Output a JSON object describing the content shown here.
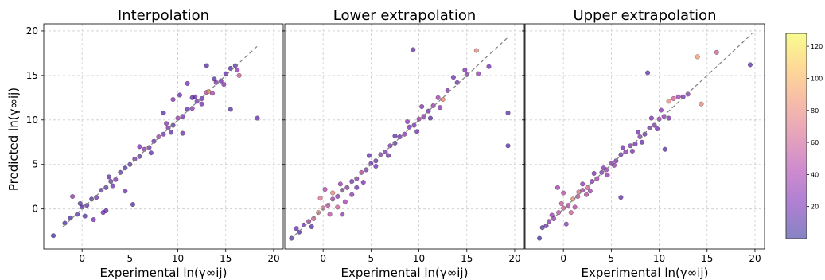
{
  "figure": {
    "ylabel": "Predicted ln(γ∞ij)",
    "colorbar": {
      "ticks": [
        20,
        40,
        60,
        80,
        100,
        120
      ],
      "range": [
        0,
        128
      ],
      "colormap": [
        "#0d0887",
        "#5c01a6",
        "#9c179e",
        "#cc4778",
        "#ed7953",
        "#fdb42f",
        "#f0f921"
      ],
      "alpha": 0.5
    },
    "colors": {
      "grid": "#cccccc",
      "diagonal": "#808080",
      "marker_edge": "#222222"
    }
  },
  "chart_data": [
    {
      "type": "scatter",
      "title": "Interpolation",
      "xlabel": "Experimental ln(γ∞ij)",
      "xlim": [
        -4,
        21
      ],
      "ylim": [
        -4.5,
        20.8
      ],
      "xticks": [
        0,
        5,
        10,
        15,
        20
      ],
      "yticks": [
        0,
        5,
        10,
        15,
        20
      ],
      "grid": true,
      "diagonal": [
        -2,
        18.5
      ],
      "points": [
        [
          -3.0,
          -3.0,
          5
        ],
        [
          -1.8,
          -1.6,
          8
        ],
        [
          -1.2,
          -1.0,
          6
        ],
        [
          -0.5,
          -0.6,
          10
        ],
        [
          0.0,
          0.2,
          12
        ],
        [
          0.5,
          0.4,
          15
        ],
        [
          1.0,
          1.1,
          9
        ],
        [
          1.5,
          1.3,
          20
        ],
        [
          2.0,
          2.1,
          14
        ],
        [
          2.5,
          2.4,
          11
        ],
        [
          3.0,
          3.1,
          18
        ],
        [
          3.5,
          3.3,
          25
        ],
        [
          4.0,
          4.1,
          13
        ],
        [
          4.5,
          4.6,
          10
        ],
        [
          5.0,
          5.0,
          16
        ],
        [
          5.5,
          5.6,
          22
        ],
        [
          6.0,
          5.9,
          12
        ],
        [
          6.5,
          6.7,
          30
        ],
        [
          7.0,
          6.9,
          18
        ],
        [
          7.5,
          7.6,
          15
        ],
        [
          8.0,
          8.1,
          40
        ],
        [
          8.5,
          8.4,
          20
        ],
        [
          9.0,
          9.1,
          25
        ],
        [
          9.5,
          9.4,
          12
        ],
        [
          10.0,
          10.2,
          35
        ],
        [
          10.5,
          10.4,
          20
        ],
        [
          11.0,
          11.2,
          15
        ],
        [
          11.5,
          11.3,
          30
        ],
        [
          12.0,
          12.1,
          22
        ],
        [
          12.5,
          12.4,
          18
        ],
        [
          13.0,
          13.1,
          50
        ],
        [
          13.2,
          13.2,
          90
        ],
        [
          13.6,
          13.0,
          40
        ],
        [
          14.0,
          14.2,
          25
        ],
        [
          14.5,
          14.4,
          20
        ],
        [
          15.0,
          15.2,
          15
        ],
        [
          15.5,
          15.8,
          12
        ],
        [
          16.0,
          16.1,
          10
        ],
        [
          16.4,
          15.0,
          60
        ],
        [
          16.2,
          15.6,
          30
        ],
        [
          18.3,
          10.2,
          15
        ],
        [
          15.5,
          11.2,
          12
        ],
        [
          13.0,
          16.1,
          10
        ],
        [
          11.0,
          14.1,
          20
        ],
        [
          11.5,
          12.5,
          15
        ],
        [
          9.5,
          12.3,
          25
        ],
        [
          10.2,
          12.8,
          18
        ],
        [
          8.5,
          10.8,
          12
        ],
        [
          10.5,
          8.5,
          20
        ],
        [
          -1.0,
          1.4,
          30
        ],
        [
          2.2,
          -0.4,
          20
        ],
        [
          2.5,
          -0.2,
          15
        ],
        [
          5.3,
          0.5,
          12
        ],
        [
          4.5,
          2.0,
          18
        ],
        [
          1.2,
          -1.2,
          22
        ],
        [
          0.3,
          -0.8,
          10
        ],
        [
          -0.2,
          0.6,
          14
        ],
        [
          6.0,
          7.0,
          25
        ],
        [
          7.2,
          6.3,
          16
        ],
        [
          3.2,
          2.6,
          20
        ],
        [
          2.8,
          3.6,
          13
        ],
        [
          8.8,
          9.6,
          30
        ],
        [
          9.3,
          8.6,
          14
        ],
        [
          12.5,
          11.8,
          22
        ],
        [
          11.8,
          12.6,
          16
        ],
        [
          14.8,
          14.0,
          28
        ],
        [
          13.8,
          14.6,
          12
        ]
      ]
    },
    {
      "type": "scatter",
      "title": "Lower extrapolation",
      "xlabel": "Experimental ln(γ∞ij)",
      "xlim": [
        -4,
        21
      ],
      "ylim": [
        -4.5,
        20.8
      ],
      "xticks": [
        0,
        5,
        10,
        15,
        20
      ],
      "yticks": [
        0,
        5,
        10,
        15,
        20
      ],
      "grid": true,
      "diagonal": [
        -3.5,
        19.3
      ],
      "points": [
        [
          -3.3,
          -3.3,
          5
        ],
        [
          -2.5,
          -2.6,
          10
        ],
        [
          -2.0,
          -1.8,
          20
        ],
        [
          -1.5,
          -1.4,
          40
        ],
        [
          -1.0,
          -1.1,
          60
        ],
        [
          -0.5,
          -0.4,
          80
        ],
        [
          0.0,
          0.1,
          70
        ],
        [
          0.5,
          0.4,
          50
        ],
        [
          1.0,
          1.1,
          40
        ],
        [
          1.5,
          1.4,
          30
        ],
        [
          2.0,
          2.1,
          25
        ],
        [
          2.5,
          2.4,
          35
        ],
        [
          3.0,
          3.1,
          20
        ],
        [
          3.5,
          3.4,
          30
        ],
        [
          4.0,
          4.1,
          45
        ],
        [
          4.5,
          4.4,
          25
        ],
        [
          5.0,
          5.1,
          20
        ],
        [
          5.5,
          5.4,
          15
        ],
        [
          6.0,
          6.1,
          30
        ],
        [
          6.5,
          6.4,
          20
        ],
        [
          7.0,
          7.1,
          25
        ],
        [
          7.5,
          7.4,
          15
        ],
        [
          8.0,
          8.1,
          20
        ],
        [
          8.5,
          8.4,
          30
        ],
        [
          9.0,
          9.2,
          25
        ],
        [
          9.5,
          9.4,
          20
        ],
        [
          10.0,
          10.1,
          40
        ],
        [
          10.5,
          10.4,
          30
        ],
        [
          11.0,
          11.0,
          20
        ],
        [
          11.5,
          11.6,
          35
        ],
        [
          12.5,
          12.3,
          80
        ],
        [
          13.0,
          13.3,
          25
        ],
        [
          14.0,
          14.2,
          20
        ],
        [
          15.0,
          15.1,
          30
        ],
        [
          16.0,
          17.8,
          80
        ],
        [
          16.2,
          15.2,
          35
        ],
        [
          17.3,
          16.0,
          20
        ],
        [
          19.3,
          10.8,
          15
        ],
        [
          19.3,
          7.1,
          12
        ],
        [
          9.4,
          17.9,
          15
        ],
        [
          12.0,
          12.5,
          40
        ],
        [
          12.2,
          11.4,
          30
        ],
        [
          1.5,
          0.2,
          60
        ],
        [
          1.0,
          1.8,
          80
        ],
        [
          -0.3,
          1.2,
          70
        ],
        [
          0.7,
          -0.6,
          50
        ],
        [
          2.3,
          0.8,
          40
        ],
        [
          1.8,
          2.8,
          35
        ],
        [
          3.5,
          2.4,
          20
        ],
        [
          4.2,
          3.0,
          25
        ],
        [
          5.5,
          4.8,
          20
        ],
        [
          4.8,
          6.0,
          15
        ],
        [
          6.8,
          6.0,
          20
        ],
        [
          7.5,
          8.2,
          15
        ],
        [
          8.8,
          9.8,
          30
        ],
        [
          9.8,
          8.7,
          20
        ],
        [
          10.3,
          11.5,
          25
        ],
        [
          2.0,
          -0.6,
          30
        ],
        [
          0.2,
          2.2,
          45
        ],
        [
          3.0,
          1.6,
          30
        ],
        [
          -1.2,
          -2.0,
          10
        ],
        [
          -2.8,
          -2.2,
          15
        ],
        [
          11.2,
          10.2,
          12
        ],
        [
          13.6,
          14.8,
          20
        ],
        [
          14.8,
          15.6,
          25
        ]
      ]
    },
    {
      "type": "scatter",
      "title": "Upper extrapolation",
      "xlabel": "Experimental ln(γ∞ij)",
      "xlim": [
        -4,
        21
      ],
      "ylim": [
        -4.5,
        20.8
      ],
      "xticks": [
        0,
        5,
        10,
        15,
        20
      ],
      "yticks": [
        0,
        5,
        10,
        15,
        20
      ],
      "grid": true,
      "diagonal": [
        -2.3,
        19.7
      ],
      "points": [
        [
          -2.5,
          -3.3,
          5
        ],
        [
          -2.2,
          -2.1,
          10
        ],
        [
          -1.8,
          -1.9,
          20
        ],
        [
          -1.5,
          -1.4,
          30
        ],
        [
          -1.0,
          -1.1,
          40
        ],
        [
          -0.5,
          -0.4,
          50
        ],
        [
          0.0,
          0.1,
          60
        ],
        [
          0.5,
          0.4,
          45
        ],
        [
          1.0,
          1.1,
          80
        ],
        [
          1.5,
          1.4,
          50
        ],
        [
          2.0,
          2.1,
          40
        ],
        [
          2.5,
          2.4,
          60
        ],
        [
          3.0,
          3.1,
          30
        ],
        [
          3.5,
          3.4,
          40
        ],
        [
          4.0,
          4.1,
          25
        ],
        [
          4.5,
          4.4,
          35
        ],
        [
          5.0,
          5.1,
          30
        ],
        [
          5.5,
          5.4,
          25
        ],
        [
          6.0,
          6.1,
          20
        ],
        [
          6.5,
          6.4,
          30
        ],
        [
          7.0,
          7.1,
          25
        ],
        [
          7.5,
          7.3,
          20
        ],
        [
          8.0,
          8.1,
          30
        ],
        [
          8.5,
          8.4,
          15
        ],
        [
          9.0,
          9.1,
          20
        ],
        [
          9.5,
          9.4,
          25
        ],
        [
          10.0,
          10.1,
          35
        ],
        [
          10.5,
          10.4,
          30
        ],
        [
          11.0,
          12.1,
          80
        ],
        [
          11.5,
          12.4,
          60
        ],
        [
          12.5,
          12.6,
          20
        ],
        [
          14.0,
          17.1,
          90
        ],
        [
          14.4,
          11.8,
          80
        ],
        [
          16.0,
          17.6,
          60
        ],
        [
          19.5,
          16.2,
          15
        ],
        [
          8.8,
          15.3,
          15
        ],
        [
          10.6,
          6.7,
          12
        ],
        [
          6.0,
          1.3,
          15
        ],
        [
          0.0,
          1.8,
          50
        ],
        [
          -0.6,
          2.4,
          40
        ],
        [
          0.3,
          -1.7,
          30
        ],
        [
          1.2,
          0.2,
          45
        ],
        [
          -1.2,
          -0.7,
          35
        ],
        [
          2.8,
          2.0,
          40
        ],
        [
          2.0,
          2.8,
          30
        ],
        [
          3.2,
          4.0,
          25
        ],
        [
          4.6,
          3.8,
          30
        ],
        [
          6.2,
          6.9,
          20
        ],
        [
          7.2,
          6.5,
          25
        ],
        [
          7.8,
          8.6,
          20
        ],
        [
          8.2,
          7.5,
          15
        ],
        [
          9.2,
          10.2,
          25
        ],
        [
          9.8,
          9.0,
          20
        ],
        [
          10.2,
          11.1,
          30
        ],
        [
          11.0,
          10.2,
          25
        ],
        [
          0.8,
          -0.4,
          60
        ],
        [
          -0.2,
          0.6,
          55
        ],
        [
          1.6,
          1.9,
          70
        ],
        [
          2.4,
          1.6,
          45
        ],
        [
          5.3,
          4.9,
          35
        ],
        [
          4.2,
          4.6,
          28
        ],
        [
          12.0,
          12.6,
          40
        ],
        [
          13.0,
          12.9,
          30
        ]
      ]
    }
  ]
}
